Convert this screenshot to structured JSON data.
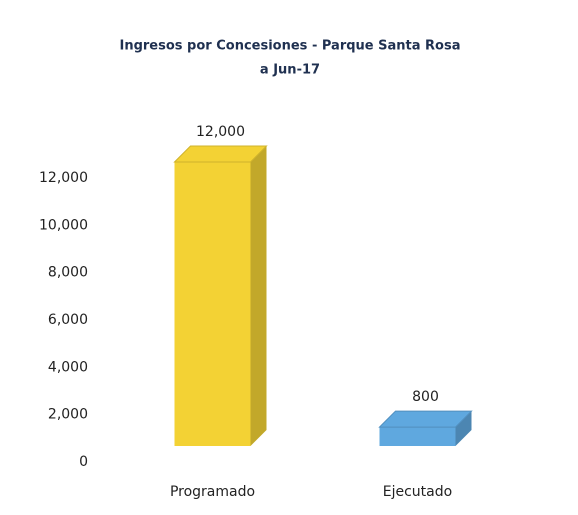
{
  "chart_data": {
    "type": "bar3d",
    "title": "Ingresos por Concesiones - Parque Santa Rosa",
    "subtitle": "a Jun-17",
    "categories": [
      "Programado",
      "Ejecutado"
    ],
    "values": [
      12000,
      800
    ],
    "value_labels": [
      "12,000",
      "800"
    ],
    "colors": [
      "#f3d234",
      "#5fa8df"
    ],
    "ylim": [
      0,
      12000
    ],
    "yticks": [
      0,
      {
        "value": 2000,
        "label": "2,000"
      },
      {
        "value": 4000,
        "label": "4,000"
      },
      {
        "value": 6000,
        "label": "6,000"
      },
      {
        "value": 8000,
        "label": "8,000"
      },
      {
        "value": 10000,
        "label": "10,000"
      },
      {
        "value": 12000,
        "label": "12,000"
      }
    ],
    "grid": false
  }
}
